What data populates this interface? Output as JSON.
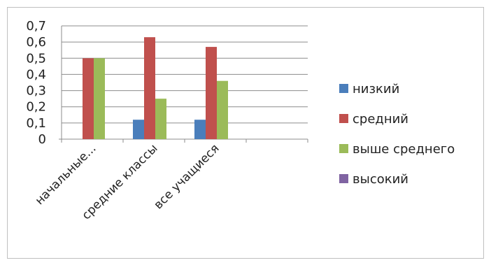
{
  "chart_data": {
    "type": "bar",
    "categories": [
      "начальные...",
      "средние классы",
      "все учащиеся",
      ""
    ],
    "series": [
      {
        "name": "низкий",
        "values": [
          0,
          0.12,
          0.12,
          0
        ],
        "color": "#4a7ebb"
      },
      {
        "name": "средний",
        "values": [
          0.5,
          0.63,
          0.57,
          0
        ],
        "color": "#c0504d"
      },
      {
        "name": "выше среднего",
        "values": [
          0.5,
          0.25,
          0.36,
          0
        ],
        "color": "#9bbb59"
      },
      {
        "name": "высокий",
        "values": [
          0,
          0,
          0,
          0
        ],
        "color": "#8064a2"
      }
    ],
    "yticks": [
      "0",
      "0,1",
      "0,2",
      "0,3",
      "0,4",
      "0,5",
      "0,6",
      "0,7"
    ],
    "ylim": [
      0,
      0.7
    ],
    "grid": true,
    "legend_position": "right"
  }
}
